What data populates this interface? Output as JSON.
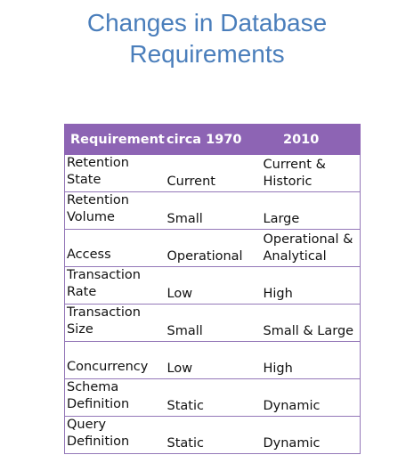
{
  "title": {
    "line1": "Changes in Database",
    "line2": "Requirements"
  },
  "table": {
    "headers": [
      "Requirement",
      "circa 1970",
      "2010"
    ],
    "rows": [
      {
        "requirement": [
          "Retention",
          "State"
        ],
        "circa_1970": "Current",
        "y2010": [
          "Current &",
          "Historic"
        ]
      },
      {
        "requirement": [
          "Retention",
          "Volume"
        ],
        "circa_1970": "Small",
        "y2010": [
          "Large"
        ]
      },
      {
        "requirement": [
          "",
          "Access"
        ],
        "circa_1970": "Operational",
        "y2010": [
          "Operational &",
          "Analytical"
        ]
      },
      {
        "requirement": [
          "Transaction",
          "Rate"
        ],
        "circa_1970": "Low",
        "y2010": [
          "High"
        ]
      },
      {
        "requirement": [
          "Transaction",
          "Size"
        ],
        "circa_1970": "Small",
        "y2010": [
          "Small & Large"
        ]
      },
      {
        "requirement": [
          "",
          "Concurrency"
        ],
        "circa_1970": "Low",
        "y2010": [
          "High"
        ]
      },
      {
        "requirement": [
          "Schema",
          "Definition"
        ],
        "circa_1970": "Static",
        "y2010": [
          "Dynamic"
        ]
      },
      {
        "requirement": [
          "Query",
          "Definition"
        ],
        "circa_1970": "Static",
        "y2010": [
          "Dynamic"
        ]
      }
    ]
  }
}
